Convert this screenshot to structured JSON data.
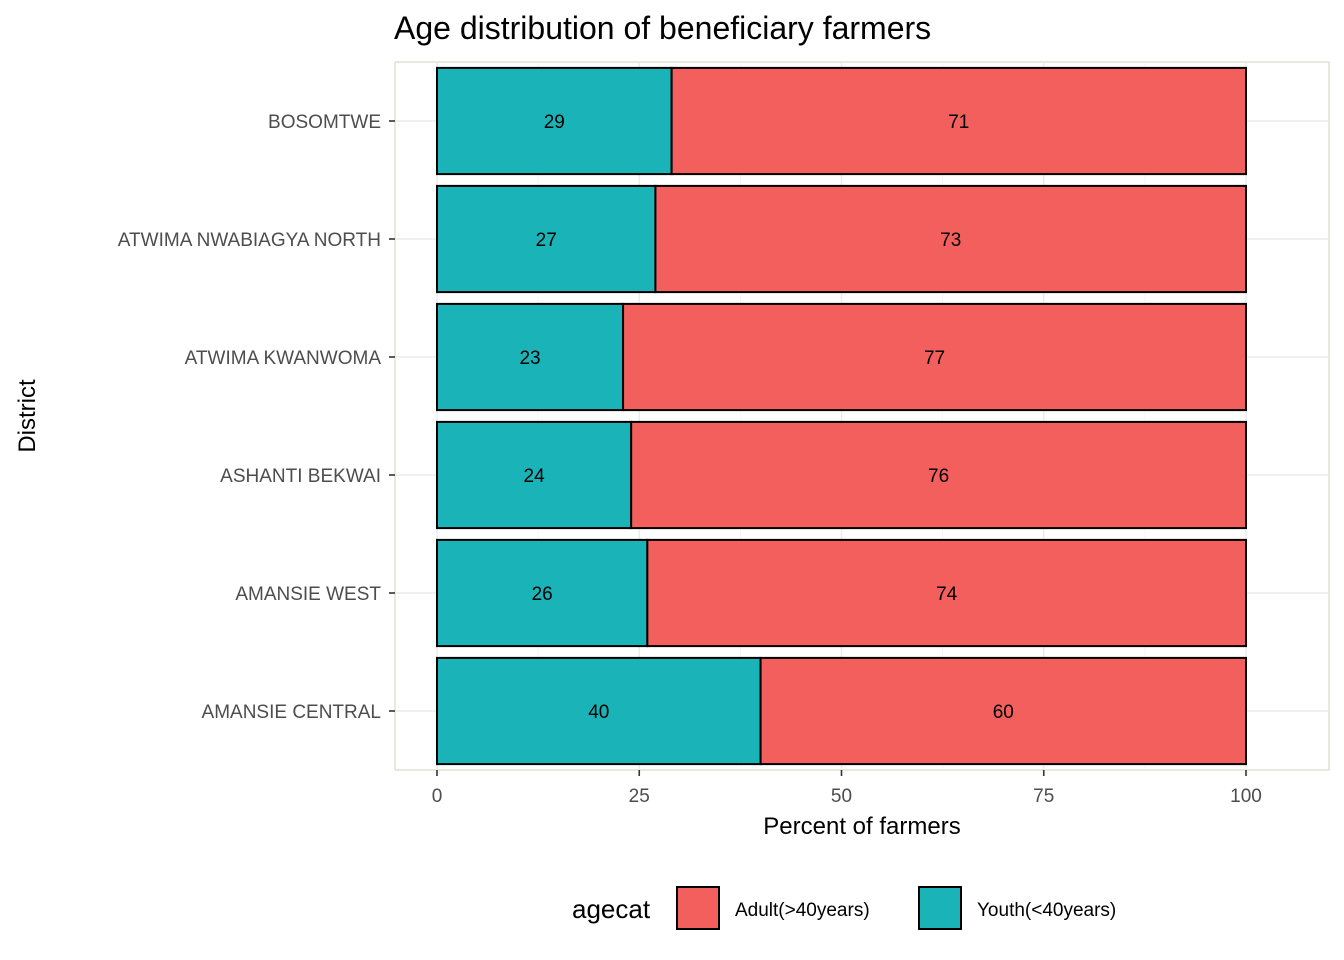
{
  "chart_data": {
    "type": "bar",
    "orientation": "horizontal",
    "stacked": true,
    "title": "Age distribution of beneficiary farmers",
    "xlabel": "Percent of farmers",
    "ylabel": "District",
    "xlim": [
      0,
      100
    ],
    "xticks": [
      0,
      25,
      50,
      75,
      100
    ],
    "categories": [
      "AMANSIE CENTRAL",
      "AMANSIE WEST",
      "ASHANTI BEKWAI",
      "ATWIMA KWANWOMA",
      "ATWIMA NWABIAGYA NORTH",
      "BOSOMTWE"
    ],
    "series": [
      {
        "name": "Youth(<40years)",
        "color": "#19b3b8",
        "values": [
          40,
          26,
          24,
          23,
          27,
          29
        ]
      },
      {
        "name": "Adult(>40years)",
        "color": "#f25f5c",
        "values": [
          60,
          74,
          76,
          77,
          73,
          71
        ]
      }
    ],
    "legend": {
      "title": "agecat",
      "position": "bottom",
      "entries": [
        {
          "label": "Adult(>40years)",
          "color": "#f25f5c"
        },
        {
          "label": "Youth(<40years)",
          "color": "#19b3b8"
        }
      ]
    },
    "grid": true
  }
}
